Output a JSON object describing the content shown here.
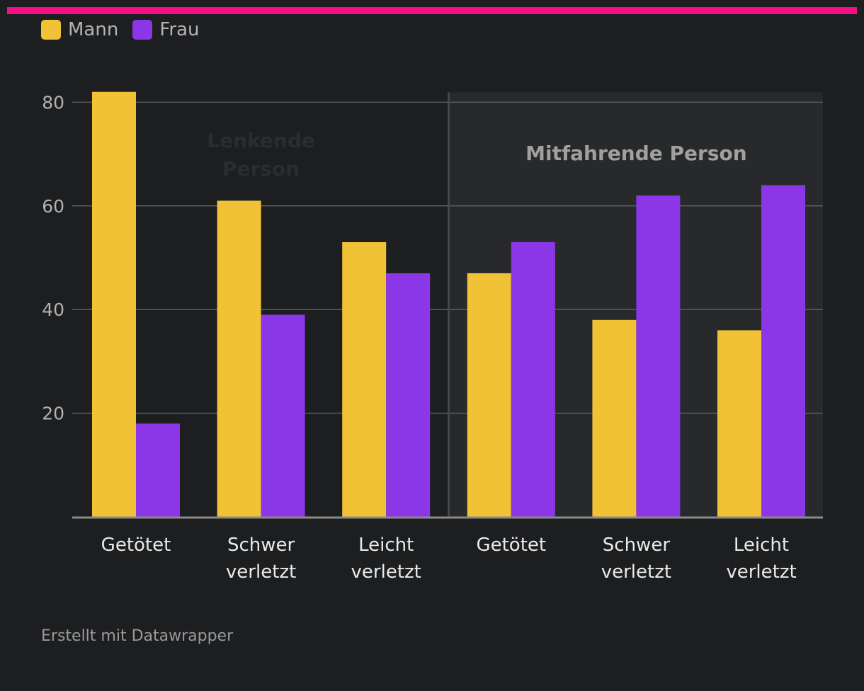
{
  "colors": {
    "background": "#1d1e20",
    "accent_bar": "#f80e84",
    "mann": "#f2c236",
    "frau": "#8c37e7",
    "grid": "#5b5c5e",
    "axis": "#8a8a8a",
    "panel": "#28292b",
    "tick_label": "#b3b3b3",
    "category_label": "#eaeaea",
    "group_label_right": "#a0a0a0",
    "group_label_left": "#2b2c2e"
  },
  "footer": {
    "credit": "Erstellt mit Datawrapper"
  },
  "chart_data": {
    "type": "bar",
    "title": "",
    "xlabel": "",
    "ylabel": "",
    "ylim": [
      0,
      80
    ],
    "yticks": [
      20,
      40,
      60,
      80
    ],
    "grid": true,
    "legend_position": "top-left",
    "groups": [
      {
        "label": "Lenkende Person",
        "categories": [
          "Getötet",
          "Schwer verletzt",
          "Leicht verletzt"
        ]
      },
      {
        "label": "Mitfahrende Person",
        "categories": [
          "Getötet",
          "Schwer verletzt",
          "Leicht verletzt"
        ]
      }
    ],
    "categories": [
      "Getötet",
      "Schwer verletzt",
      "Leicht verletzt",
      "Getötet",
      "Schwer verletzt",
      "Leicht verletzt"
    ],
    "series": [
      {
        "name": "Mann",
        "values": [
          82,
          61,
          53,
          47,
          38,
          36
        ]
      },
      {
        "name": "Frau",
        "values": [
          18,
          39,
          47,
          53,
          62,
          64
        ]
      }
    ]
  }
}
